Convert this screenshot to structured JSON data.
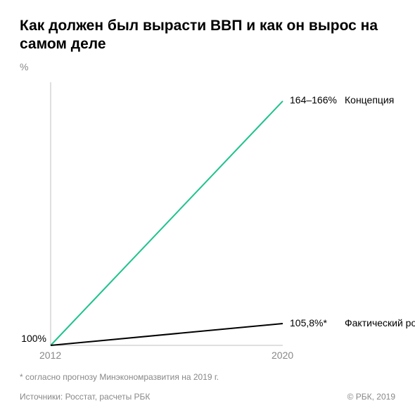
{
  "title": "Как должен был вырасти ВВП и как он вырос на самом деле",
  "y_unit": "%",
  "chart": {
    "type": "line",
    "background_color": "#ffffff",
    "axis_color": "#bfbfbf",
    "axis_width": 1,
    "x": {
      "min": 2012,
      "max": 2020,
      "ticks": [
        2012,
        2020
      ]
    },
    "y": {
      "min": 100,
      "max": 170
    },
    "series": [
      {
        "id": "concept",
        "name": "Концепция",
        "color": "#1fc28e",
        "line_width": 2,
        "points": [
          {
            "x": 2012,
            "y": 100
          },
          {
            "x": 2020,
            "y": 165
          }
        ],
        "end_value_label": "164–166%",
        "end_name_label": "Концепция"
      },
      {
        "id": "actual",
        "name": "Фактический рост",
        "color": "#000000",
        "line_width": 2,
        "points": [
          {
            "x": 2012,
            "y": 100
          },
          {
            "x": 2020,
            "y": 105.8
          }
        ],
        "end_value_label": "105,8%*",
        "end_name_label": "Фактический рост"
      }
    ],
    "start_label": "100%",
    "label_fontsize": 14,
    "label_color": "#000000",
    "tick_fontsize": 14,
    "tick_color": "#888888",
    "title_fontsize": 21
  },
  "footnote": "* согласно прогнозу Минэкономразвития на 2019 г.",
  "source_label": "Источники: Росстат, расчеты РБК",
  "copyright": "© РБК, 2019",
  "footer_fontsize": 12
}
